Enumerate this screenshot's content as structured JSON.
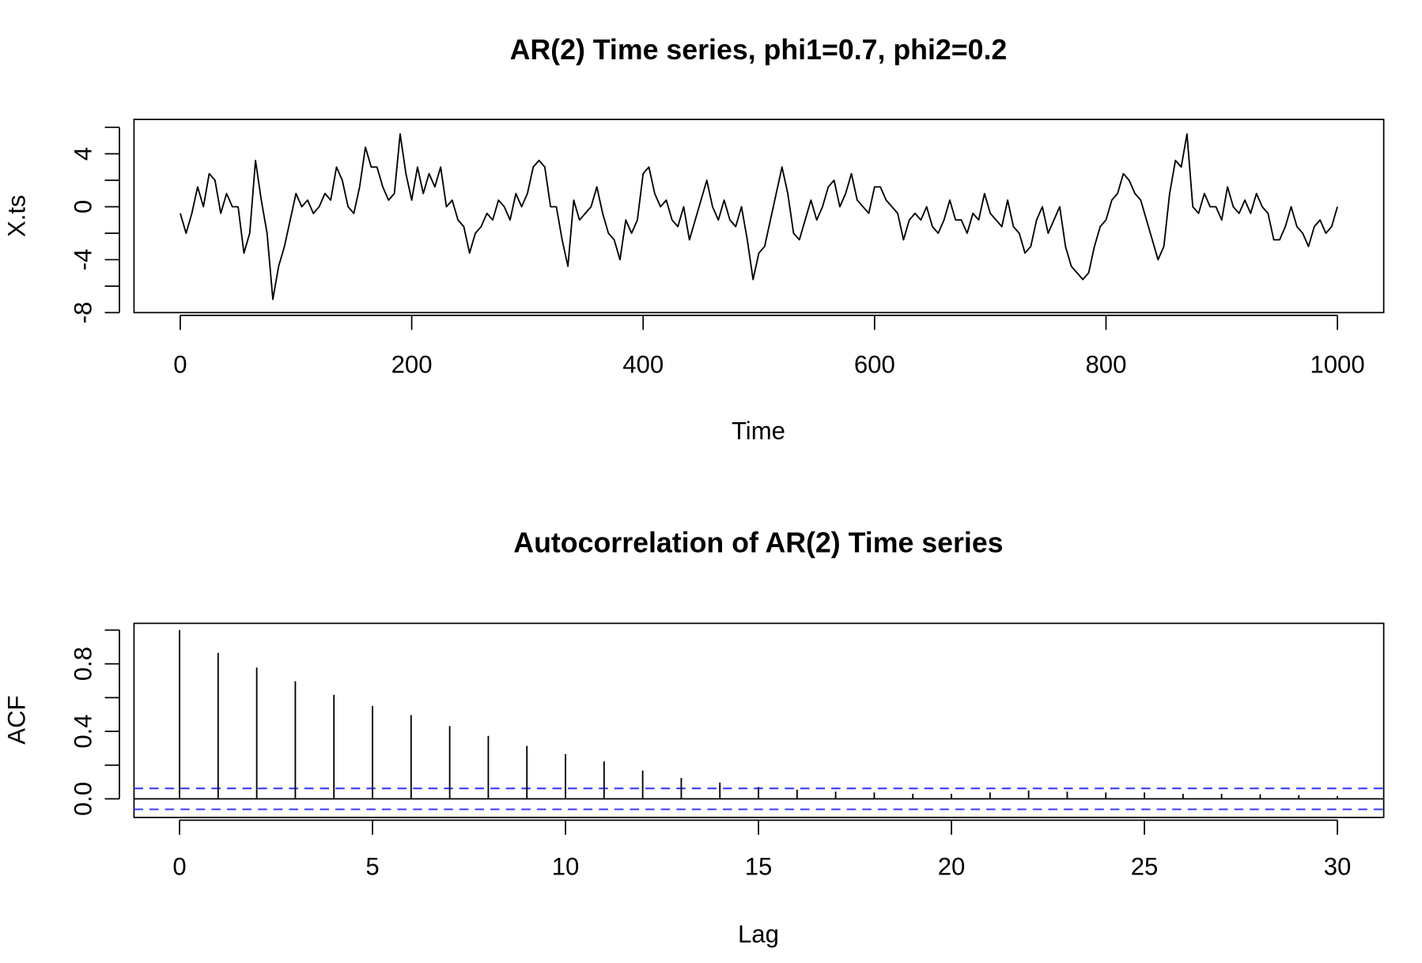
{
  "chart_data": [
    {
      "type": "line",
      "title": "AR(2) Time series, phi1=0.7, phi2=0.2",
      "xlabel": "Time",
      "ylabel": "X.ts",
      "color": "#000000",
      "x": [
        0,
        5,
        10,
        15,
        20,
        25,
        30,
        35,
        40,
        45,
        50,
        55,
        60,
        65,
        70,
        75,
        80,
        85,
        90,
        95,
        100,
        105,
        110,
        115,
        120,
        125,
        130,
        135,
        140,
        145,
        150,
        155,
        160,
        165,
        170,
        175,
        180,
        185,
        190,
        195,
        200,
        205,
        210,
        215,
        220,
        225,
        230,
        235,
        240,
        245,
        250,
        255,
        260,
        265,
        270,
        275,
        280,
        285,
        290,
        295,
        300,
        305,
        310,
        315,
        320,
        325,
        330,
        335,
        340,
        345,
        350,
        355,
        360,
        365,
        370,
        375,
        380,
        385,
        390,
        395,
        400,
        405,
        410,
        415,
        420,
        425,
        430,
        435,
        440,
        445,
        450,
        455,
        460,
        465,
        470,
        475,
        480,
        485,
        490,
        495,
        500,
        505,
        510,
        515,
        520,
        525,
        530,
        535,
        540,
        545,
        550,
        555,
        560,
        565,
        570,
        575,
        580,
        585,
        590,
        595,
        600,
        605,
        610,
        615,
        620,
        625,
        630,
        635,
        640,
        645,
        650,
        655,
        660,
        665,
        670,
        675,
        680,
        685,
        690,
        695,
        700,
        705,
        710,
        715,
        720,
        725,
        730,
        735,
        740,
        745,
        750,
        755,
        760,
        765,
        770,
        775,
        780,
        785,
        790,
        795,
        800,
        805,
        810,
        815,
        820,
        825,
        830,
        835,
        840,
        845,
        850,
        855,
        860,
        865,
        870,
        875,
        880,
        885,
        890,
        895,
        900,
        905,
        910,
        915,
        920,
        925,
        930,
        935,
        940,
        945,
        950,
        955,
        960,
        965,
        970,
        975,
        980,
        985,
        990,
        995,
        1000
      ],
      "values": [
        -0.5,
        -2,
        -0.5,
        1.5,
        0,
        2.5,
        2,
        -0.5,
        1,
        0,
        0,
        -3.5,
        -2,
        3.5,
        0.5,
        -2,
        -7,
        -4.5,
        -3,
        -1,
        1,
        0,
        0.5,
        -0.5,
        0,
        1,
        0.5,
        3,
        2,
        0,
        -0.5,
        1.5,
        4.5,
        3,
        3,
        1.5,
        0.5,
        1,
        5.5,
        2.5,
        0.5,
        3,
        1,
        2.5,
        1.5,
        3,
        0,
        0.5,
        -1,
        -1.5,
        -3.5,
        -2,
        -1.5,
        -0.5,
        -1,
        0.5,
        0,
        -1,
        1,
        0,
        1,
        3,
        3.5,
        3,
        0,
        0,
        -2.5,
        -4.5,
        0.5,
        -1,
        -0.5,
        0,
        1.5,
        -0.5,
        -2,
        -2.5,
        -4,
        -1,
        -2,
        -1,
        2.5,
        3,
        1,
        0,
        0.5,
        -1,
        -1.5,
        0,
        -2.5,
        -1,
        0.5,
        2,
        0,
        -1,
        0.5,
        -1,
        -1.5,
        0,
        -2.5,
        -5.5,
        -3.5,
        -3,
        -1,
        1,
        3,
        1,
        -2,
        -2.5,
        -1,
        0.5,
        -1,
        0,
        1.5,
        2,
        0,
        1,
        2.5,
        0.5,
        0,
        -0.5,
        1.5,
        1.5,
        0.5,
        0,
        -0.5,
        -2.5,
        -1,
        -0.5,
        -1,
        0,
        -1.5,
        -2,
        -1,
        0.5,
        -1,
        -1,
        -2,
        -0.5,
        -1,
        1,
        -0.5,
        -1,
        -1.5,
        0.5,
        -1.5,
        -2,
        -3.5,
        -3,
        -1,
        0,
        -2,
        -1,
        0,
        -3,
        -4.5,
        -5,
        -5.5,
        -5,
        -3,
        -1.5,
        -1,
        0.5,
        1,
        2.5,
        2,
        1,
        0.5,
        -1,
        -2.5,
        -4,
        -3,
        1,
        3.5,
        3,
        5.5,
        0,
        -0.5,
        1,
        0,
        0,
        -1,
        1.5,
        0,
        -0.5,
        0.5,
        -0.5,
        1,
        0,
        -0.5,
        -2.5,
        -2.5,
        -1.5,
        0,
        -1.5,
        -2,
        -3,
        -1.5,
        -1,
        -2,
        -1.5,
        0
      ],
      "xlim": [
        -40,
        1040
      ],
      "xticks": [
        0,
        200,
        400,
        600,
        800,
        1000
      ],
      "ylim": [
        -8,
        6.6
      ],
      "yticks": [
        -8,
        -4,
        0,
        4
      ],
      "yticks_minor": [
        -6,
        -2,
        2,
        6
      ]
    },
    {
      "type": "bar",
      "title": "Autocorrelation of AR(2) Time series",
      "xlabel": "Lag",
      "ylabel": "ACF",
      "color": "#000000",
      "x": [
        0,
        1,
        2,
        3,
        4,
        5,
        6,
        7,
        8,
        9,
        10,
        11,
        12,
        13,
        14,
        15,
        16,
        17,
        18,
        19,
        20,
        21,
        22,
        23,
        24,
        25,
        26,
        27,
        28,
        29,
        30
      ],
      "values": [
        1,
        0.865,
        0.778,
        0.697,
        0.616,
        0.551,
        0.497,
        0.432,
        0.373,
        0.314,
        0.265,
        0.222,
        0.168,
        0.124,
        0.097,
        0.07,
        0.054,
        0.043,
        0.038,
        0.03,
        0.03,
        0.038,
        0.05,
        0.043,
        0.038,
        0.038,
        0.03,
        0.03,
        0.027,
        0.022,
        0.016
      ],
      "confidence_bounds": [
        0.062,
        -0.062
      ],
      "confidence_color": "#3b3bff",
      "xlim": [
        -1.18,
        31.2
      ],
      "xticks": [
        0,
        5,
        10,
        15,
        20,
        25,
        30
      ],
      "ylim": [
        -0.11,
        1.04
      ],
      "yticks": [
        {
          "value": 0,
          "label": "0.0"
        },
        0.4,
        0.8
      ],
      "yticks_minor": [
        0.2,
        0.6,
        1
      ]
    }
  ]
}
